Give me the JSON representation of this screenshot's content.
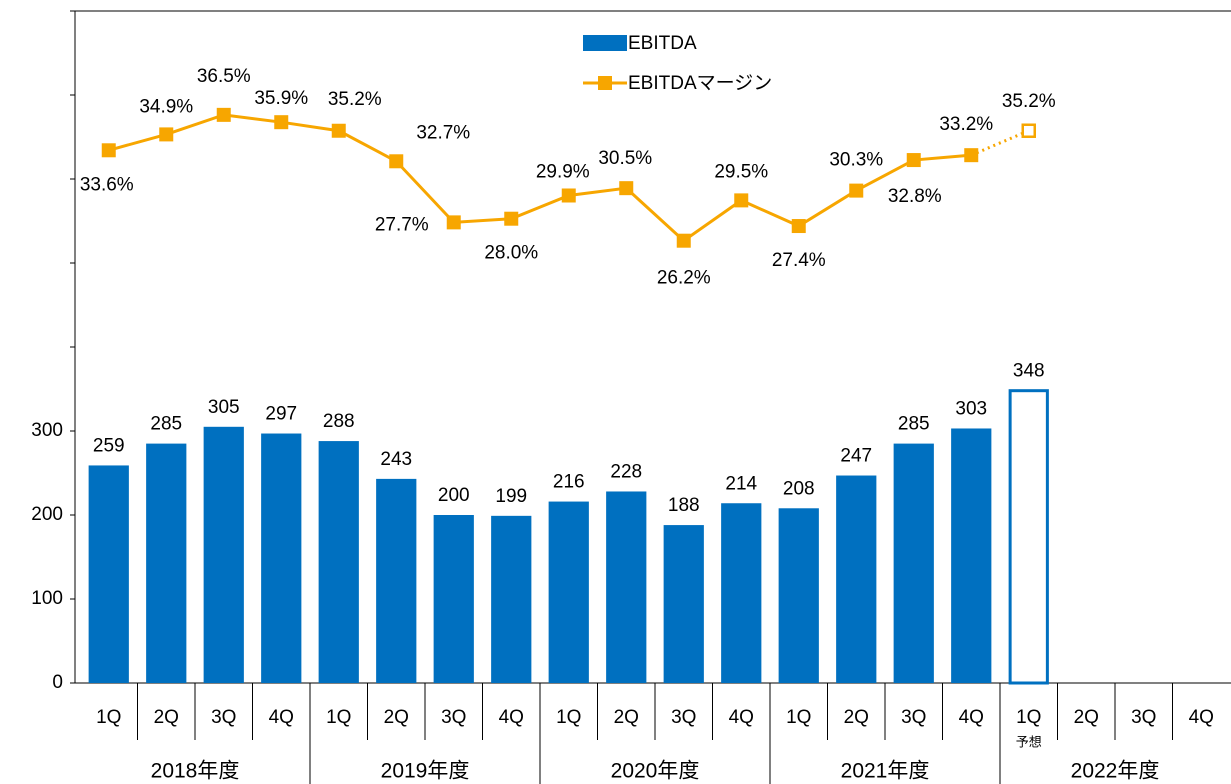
{
  "chart_data": {
    "type": "bar_line",
    "categories": [
      "1Q",
      "2Q",
      "3Q",
      "4Q",
      "1Q",
      "2Q",
      "3Q",
      "4Q",
      "1Q",
      "2Q",
      "3Q",
      "4Q",
      "1Q",
      "2Q",
      "3Q",
      "4Q",
      "1Q",
      "2Q",
      "3Q",
      "4Q"
    ],
    "groups": [
      "2018年度",
      "2019年度",
      "2020年度",
      "2021年度",
      "2022年度"
    ],
    "forecast": {
      "label": "予想",
      "category_index": 16
    },
    "series": [
      {
        "name": "EBITDA",
        "type": "bar",
        "color": "#0070c0",
        "values": [
          259,
          285,
          305,
          297,
          288,
          243,
          200,
          199,
          216,
          228,
          188,
          214,
          208,
          247,
          285,
          303,
          348,
          null,
          null,
          null
        ]
      },
      {
        "name": "EBITDAマージン",
        "type": "line",
        "axis": "y2",
        "color": "#f7a600",
        "values": [
          33.6,
          34.9,
          36.5,
          35.9,
          35.2,
          32.7,
          27.7,
          28.0,
          29.9,
          30.5,
          26.2,
          29.5,
          27.4,
          30.3,
          32.8,
          33.2,
          35.2,
          null,
          null,
          null
        ],
        "value_labels": [
          "33.6%",
          "34.9%",
          "36.5%",
          "35.9%",
          "35.2%",
          "32.7%",
          "27.7%",
          "28.0%",
          "29.9%",
          "30.5%",
          "26.2%",
          "29.5%",
          "27.4%",
          "30.3%",
          "32.8%",
          "33.2%",
          "35.2%",
          null,
          null,
          null
        ]
      }
    ],
    "ylim": [
      0,
      800
    ],
    "yticks": [
      0,
      100,
      200,
      300
    ],
    "minor_yticks": [
      400,
      500,
      600,
      700,
      800
    ],
    "y2lim": [
      -10,
      45
    ]
  }
}
